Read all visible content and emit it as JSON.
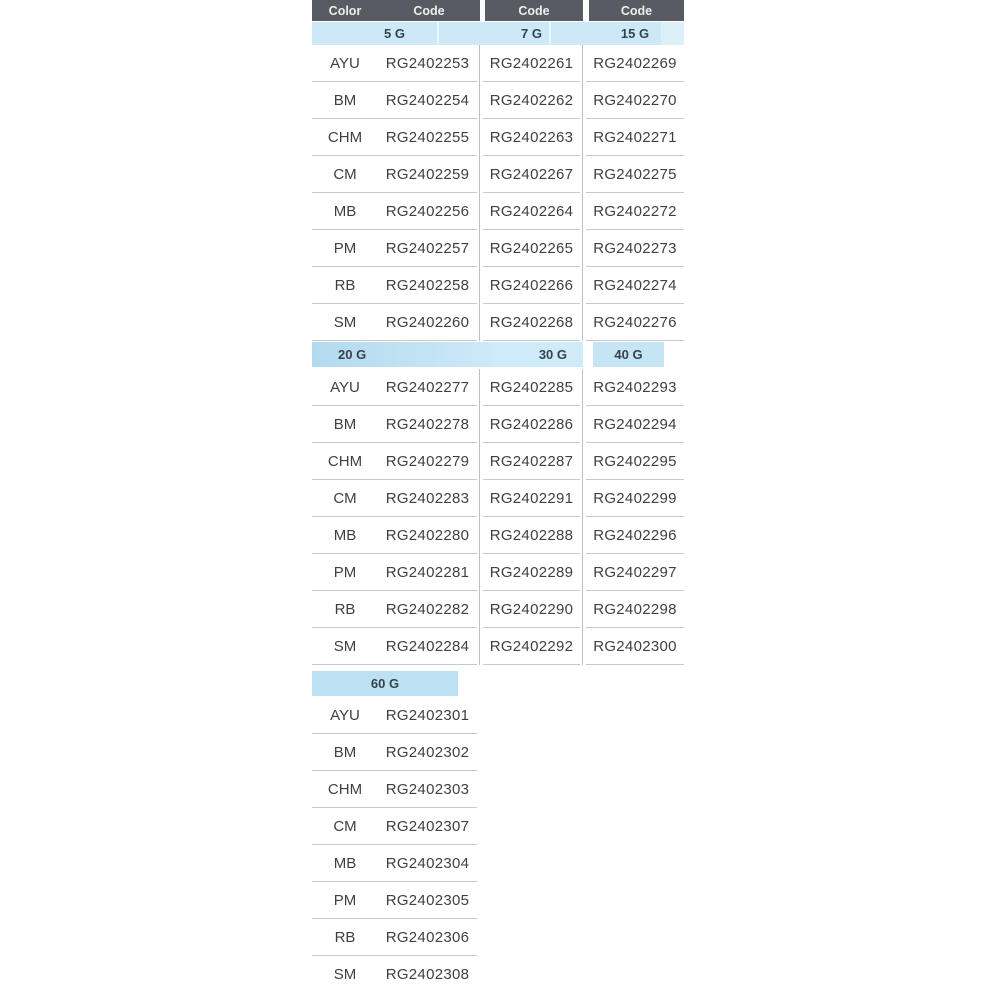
{
  "table": {
    "header": {
      "color_label": "Color",
      "code_label": "Code"
    },
    "sections": [
      {
        "weights": [
          "5 G",
          "7 G",
          "15 G"
        ],
        "rows": [
          {
            "color": "AYU",
            "codes": [
              "RG2402253",
              "RG2402261",
              "RG2402269"
            ]
          },
          {
            "color": "BM",
            "codes": [
              "RG2402254",
              "RG2402262",
              "RG2402270"
            ]
          },
          {
            "color": "CHM",
            "codes": [
              "RG2402255",
              "RG2402263",
              "RG2402271"
            ]
          },
          {
            "color": "CM",
            "codes": [
              "RG2402259",
              "RG2402267",
              "RG2402275"
            ]
          },
          {
            "color": "MB",
            "codes": [
              "RG2402256",
              "RG2402264",
              "RG2402272"
            ]
          },
          {
            "color": "PM",
            "codes": [
              "RG2402257",
              "RG2402265",
              "RG2402273"
            ]
          },
          {
            "color": "RB",
            "codes": [
              "RG2402258",
              "RG2402266",
              "RG2402274"
            ]
          },
          {
            "color": "SM",
            "codes": [
              "RG2402260",
              "RG2402268",
              "RG2402276"
            ]
          }
        ]
      },
      {
        "weights": [
          "20 G",
          "30 G",
          "40 G"
        ],
        "rows": [
          {
            "color": "AYU",
            "codes": [
              "RG2402277",
              "RG2402285",
              "RG2402293"
            ]
          },
          {
            "color": "BM",
            "codes": [
              "RG2402278",
              "RG2402286",
              "RG2402294"
            ]
          },
          {
            "color": "CHM",
            "codes": [
              "RG2402279",
              "RG2402287",
              "RG2402295"
            ]
          },
          {
            "color": "CM",
            "codes": [
              "RG2402283",
              "RG2402291",
              "RG2402299"
            ]
          },
          {
            "color": "MB",
            "codes": [
              "RG2402280",
              "RG2402288",
              "RG2402296"
            ]
          },
          {
            "color": "PM",
            "codes": [
              "RG2402281",
              "RG2402289",
              "RG2402297"
            ]
          },
          {
            "color": "RB",
            "codes": [
              "RG2402282",
              "RG2402290",
              "RG2402298"
            ]
          },
          {
            "color": "SM",
            "codes": [
              "RG2402284",
              "RG2402292",
              "RG2402300"
            ]
          }
        ]
      },
      {
        "weights": [
          "60 G"
        ],
        "rows": [
          {
            "color": "AYU",
            "codes": [
              "RG2402301"
            ]
          },
          {
            "color": "BM",
            "codes": [
              "RG2402302"
            ]
          },
          {
            "color": "CHM",
            "codes": [
              "RG2402303"
            ]
          },
          {
            "color": "CM",
            "codes": [
              "RG2402307"
            ]
          },
          {
            "color": "MB",
            "codes": [
              "RG2402304"
            ]
          },
          {
            "color": "PM",
            "codes": [
              "RG2402305"
            ]
          },
          {
            "color": "RB",
            "codes": [
              "RG2402306"
            ]
          },
          {
            "color": "SM",
            "codes": [
              "RG2402308"
            ]
          }
        ]
      }
    ]
  },
  "colors": {
    "header_bg": "#585c62",
    "header_text": "#eceded",
    "subheader_bg": "#cde9f7",
    "subheader_text": "#37434c",
    "band_20g": "#b2daee",
    "band_30g": "#cfeaf8",
    "band_40g": "#c6e5f4",
    "band_60g": "#bce1f2",
    "row_divider": "#c6c9cb",
    "body_text": "#3d4144",
    "page_bg": "#ffffff"
  }
}
